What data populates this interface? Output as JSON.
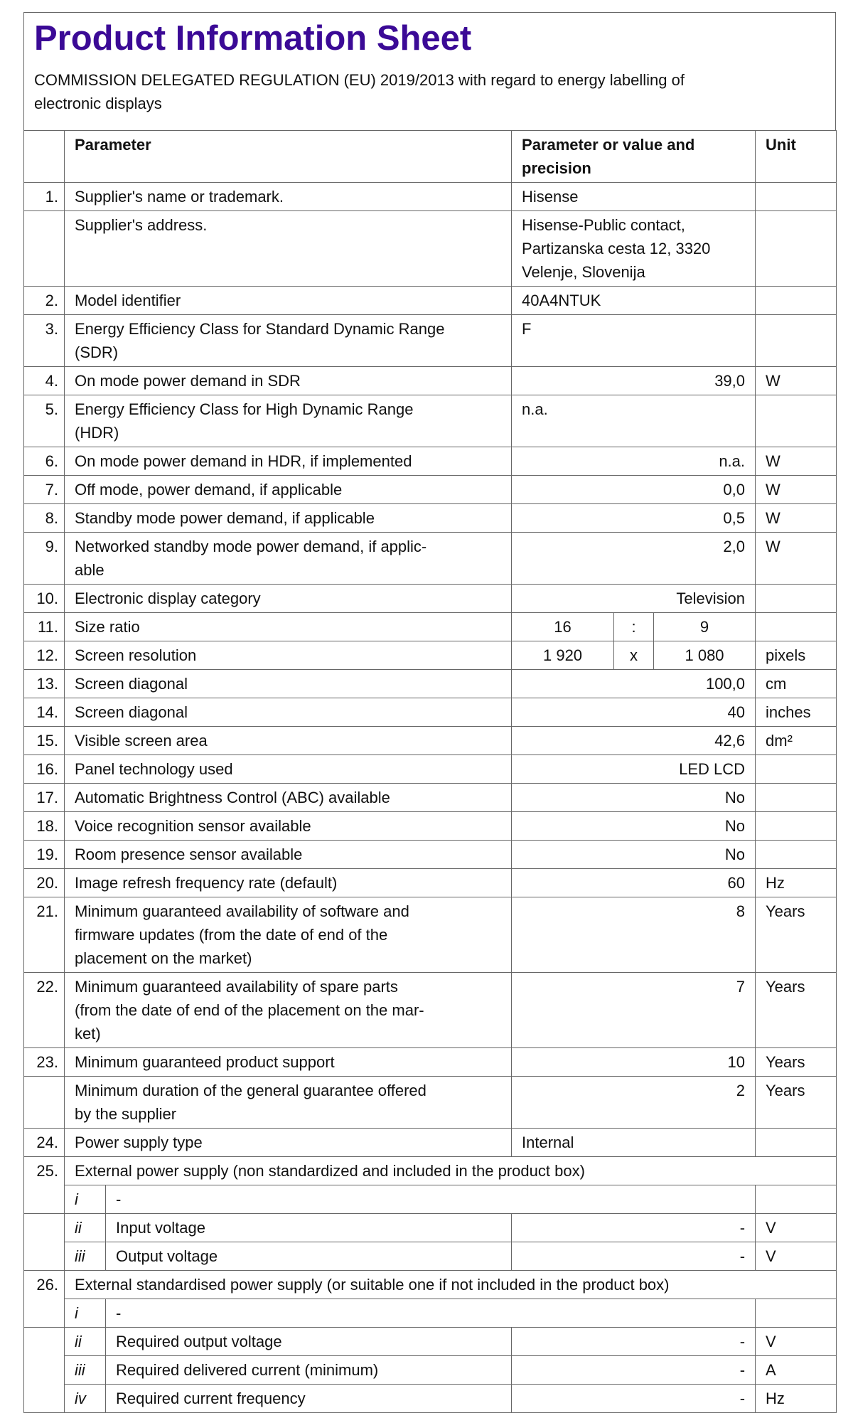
{
  "title": "Product Information Sheet",
  "subtitle": "COMMISSION DELEGATED REGULATION (EU) 2019/2013 with regard to energy labelling of\nelectronic displays",
  "colors": {
    "title": "#3b0a96",
    "border": "#666666"
  },
  "header": {
    "parameter": "Parameter",
    "value": "Parameter or value and\nprecision",
    "unit": "Unit"
  },
  "rows": [
    {
      "num": "1.",
      "param": "Supplier's name or trademark.",
      "value": "Hisense",
      "unit": "",
      "align": "left"
    },
    {
      "num": "",
      "param": "Supplier's address.",
      "value": "Hisense-Public contact,\nPartizanska cesta 12, 3320\nVelenje, Slovenija",
      "unit": "",
      "align": "left"
    },
    {
      "num": "2.",
      "param": "Model identifier",
      "value": "40A4NTUK",
      "unit": "",
      "align": "left"
    },
    {
      "num": "3.",
      "param": "Energy Efficiency Class for Standard Dynamic Range\n(SDR)",
      "value": "F",
      "unit": "",
      "align": "left"
    },
    {
      "num": "4.",
      "param": "On mode power demand in SDR",
      "value": "39,0",
      "unit": "W",
      "align": "right"
    },
    {
      "num": "5.",
      "param": "Energy Efficiency Class for High Dynamic Range\n(HDR)",
      "value": "n.a.",
      "unit": "",
      "align": "left"
    },
    {
      "num": "6.",
      "param": "On mode power demand in HDR, if implemented",
      "value": "n.a.",
      "unit": "W",
      "align": "right"
    },
    {
      "num": "7.",
      "param": "Off mode, power demand, if applicable",
      "value": "0,0",
      "unit": "W",
      "align": "right"
    },
    {
      "num": "8.",
      "param": "Standby mode power demand, if applicable",
      "value": "0,5",
      "unit": "W",
      "align": "right"
    },
    {
      "num": "9.",
      "param": "Networked standby mode power demand, if applic-\nable",
      "value": "2,0",
      "unit": "W",
      "align": "right"
    },
    {
      "num": "10.",
      "param": "Electronic display category",
      "value": "Television",
      "unit": "",
      "align": "right"
    },
    {
      "num": "11.",
      "param": "Size ratio",
      "split": [
        "16",
        ":",
        "9"
      ],
      "unit": ""
    },
    {
      "num": "12.",
      "param": "Screen resolution",
      "split": [
        "1 920",
        "x",
        "1 080"
      ],
      "unit": "pixels"
    },
    {
      "num": "13.",
      "param": "Screen diagonal",
      "value": "100,0",
      "unit": "cm",
      "align": "right"
    },
    {
      "num": "14.",
      "param": "Screen diagonal",
      "value": "40",
      "unit": "inches",
      "align": "right"
    },
    {
      "num": "15.",
      "param": "Visible screen area",
      "value": "42,6",
      "unit": "dm²",
      "align": "right"
    },
    {
      "num": "16.",
      "param": "Panel technology used",
      "value": "LED LCD",
      "unit": "",
      "align": "right"
    },
    {
      "num": "17.",
      "param": "Automatic Brightness Control (ABC) available",
      "value": "No",
      "unit": "",
      "align": "right"
    },
    {
      "num": "18.",
      "param": "Voice recognition sensor available",
      "value": "No",
      "unit": "",
      "align": "right"
    },
    {
      "num": "19.",
      "param": "Room presence sensor available",
      "value": "No",
      "unit": "",
      "align": "right"
    },
    {
      "num": "20.",
      "param": "Image refresh frequency rate (default)",
      "value": "60",
      "unit": "Hz",
      "align": "right"
    },
    {
      "num": "21.",
      "param": "Minimum guaranteed availability of software and\nfirmware updates (from the date of end of the\nplacement on the market)",
      "value": "8",
      "unit": "Years",
      "align": "right"
    },
    {
      "num": "22.",
      "param": "Minimum guaranteed availability of spare parts\n(from the date of end of the placement on the mar-\nket)",
      "value": "7",
      "unit": "Years",
      "align": "right"
    },
    {
      "num": "23.",
      "param": "Minimum guaranteed product support",
      "value": "10",
      "unit": "Years",
      "align": "right"
    },
    {
      "num": "",
      "param": "Minimum duration of the general guarantee offered\nby the supplier",
      "value": "2",
      "unit": "Years",
      "align": "right"
    },
    {
      "num": "24.",
      "param": "Power supply type",
      "value": "Internal",
      "unit": "",
      "align": "left"
    }
  ],
  "groups": [
    {
      "num": "25.",
      "title": "External power supply (non standardized and included in the product box)",
      "first": {
        "roman": "i",
        "text": "-"
      },
      "items": [
        {
          "roman": "ii",
          "param": "Input voltage",
          "value": "-",
          "unit": "V"
        },
        {
          "roman": "iii",
          "param": "Output voltage",
          "value": "-",
          "unit": "V"
        }
      ]
    },
    {
      "num": "26.",
      "title": "External standardised power supply (or suitable one if not included in the product box)",
      "first": {
        "roman": "i",
        "text": "-"
      },
      "items": [
        {
          "roman": "ii",
          "param": "Required output voltage",
          "value": "-",
          "unit": "V"
        },
        {
          "roman": "iii",
          "param": "Required delivered current (minimum)",
          "value": "-",
          "unit": "A"
        },
        {
          "roman": "iv",
          "param": "Required current frequency",
          "value": "-",
          "unit": "Hz"
        }
      ]
    }
  ]
}
